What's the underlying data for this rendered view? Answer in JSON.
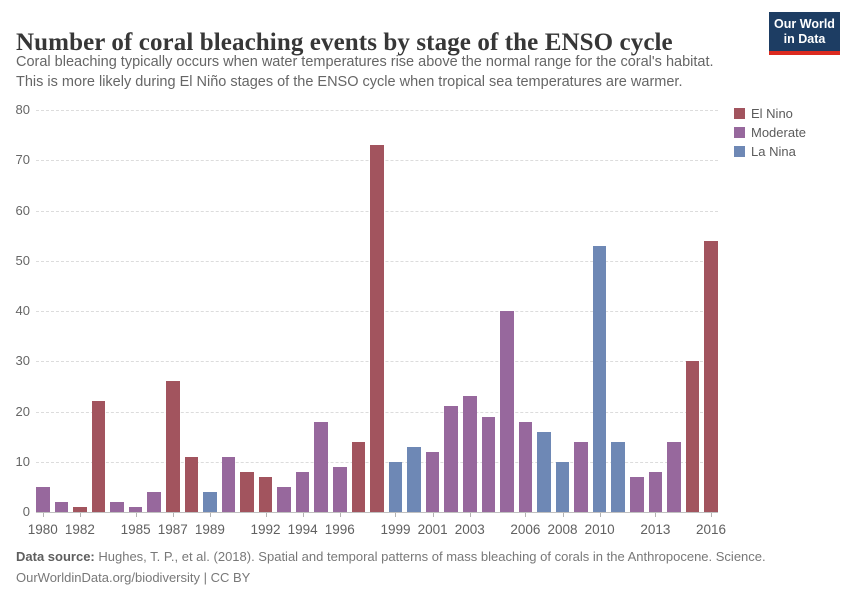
{
  "header": {
    "title": "Number of coral bleaching events by stage of the ENSO cycle",
    "subtitle_line1": "Coral bleaching typically occurs when water temperatures rise above the normal range for the coral's habitat.",
    "subtitle_line2": "This is more likely during El Niño stages of the ENSO cycle when tropical sea temperatures are warmer.",
    "logo": {
      "line1": "Our World",
      "line2": "in Data",
      "bg_color": "#1d3d63",
      "accent_color": "#dc2a1f"
    }
  },
  "legend": {
    "items": [
      {
        "label": "El Nino",
        "key": "el_nino"
      },
      {
        "label": "Moderate",
        "key": "moderate"
      },
      {
        "label": "La Nina",
        "key": "la_nina"
      }
    ]
  },
  "chart_data": {
    "type": "bar",
    "title": "Number of coral bleaching events by stage of the ENSO cycle",
    "xlabel": "",
    "ylabel": "",
    "ylim": [
      0,
      80
    ],
    "ytick_step": 10,
    "grid": "horizontal-dashed",
    "legend_position": "right",
    "phase_colors": {
      "el_nino": "#a2545e",
      "moderate": "#97689d",
      "la_nina": "#6e88b5"
    },
    "labeled_years": [
      1980,
      1982,
      1985,
      1987,
      1989,
      1992,
      1994,
      1996,
      1999,
      2001,
      2003,
      2006,
      2008,
      2010,
      2013,
      2016
    ],
    "points": [
      {
        "year": 1980,
        "value": 5,
        "phase": "moderate"
      },
      {
        "year": 1981,
        "value": 2,
        "phase": "moderate"
      },
      {
        "year": 1982,
        "value": 1,
        "phase": "el_nino"
      },
      {
        "year": 1983,
        "value": 22,
        "phase": "el_nino"
      },
      {
        "year": 1984,
        "value": 2,
        "phase": "moderate"
      },
      {
        "year": 1985,
        "value": 1,
        "phase": "moderate"
      },
      {
        "year": 1986,
        "value": 4,
        "phase": "moderate"
      },
      {
        "year": 1987,
        "value": 26,
        "phase": "el_nino"
      },
      {
        "year": 1988,
        "value": 11,
        "phase": "el_nino"
      },
      {
        "year": 1989,
        "value": 4,
        "phase": "la_nina"
      },
      {
        "year": 1990,
        "value": 11,
        "phase": "moderate"
      },
      {
        "year": 1991,
        "value": 8,
        "phase": "el_nino"
      },
      {
        "year": 1992,
        "value": 7,
        "phase": "el_nino"
      },
      {
        "year": 1993,
        "value": 5,
        "phase": "moderate"
      },
      {
        "year": 1994,
        "value": 8,
        "phase": "moderate"
      },
      {
        "year": 1995,
        "value": 18,
        "phase": "moderate"
      },
      {
        "year": 1996,
        "value": 9,
        "phase": "moderate"
      },
      {
        "year": 1997,
        "value": 14,
        "phase": "el_nino"
      },
      {
        "year": 1998,
        "value": 73,
        "phase": "el_nino"
      },
      {
        "year": 1999,
        "value": 10,
        "phase": "la_nina"
      },
      {
        "year": 2000,
        "value": 13,
        "phase": "la_nina"
      },
      {
        "year": 2001,
        "value": 12,
        "phase": "moderate"
      },
      {
        "year": 2002,
        "value": 21,
        "phase": "moderate"
      },
      {
        "year": 2003,
        "value": 23,
        "phase": "moderate"
      },
      {
        "year": 2004,
        "value": 19,
        "phase": "moderate"
      },
      {
        "year": 2005,
        "value": 40,
        "phase": "moderate"
      },
      {
        "year": 2006,
        "value": 18,
        "phase": "moderate"
      },
      {
        "year": 2007,
        "value": 16,
        "phase": "la_nina"
      },
      {
        "year": 2008,
        "value": 10,
        "phase": "la_nina"
      },
      {
        "year": 2009,
        "value": 14,
        "phase": "moderate"
      },
      {
        "year": 2010,
        "value": 53,
        "phase": "la_nina"
      },
      {
        "year": 2011,
        "value": 14,
        "phase": "la_nina"
      },
      {
        "year": 2012,
        "value": 7,
        "phase": "moderate"
      },
      {
        "year": 2013,
        "value": 8,
        "phase": "moderate"
      },
      {
        "year": 2014,
        "value": 14,
        "phase": "moderate"
      },
      {
        "year": 2015,
        "value": 30,
        "phase": "el_nino"
      },
      {
        "year": 2016,
        "value": 54,
        "phase": "el_nino"
      }
    ]
  },
  "footer": {
    "source_label": "Data source:",
    "source_text": " Hughes, T. P., et al. (2018). Spatial and temporal patterns of mass bleaching of corals in the Anthropocene. Science.",
    "license_line": "OurWorldinData.org/biodiversity | CC BY"
  }
}
